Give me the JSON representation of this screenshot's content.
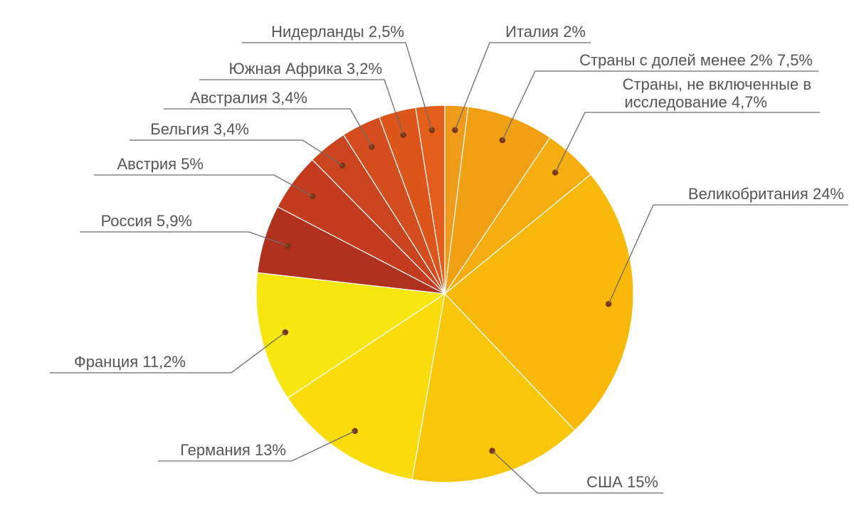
{
  "chart_data": {
    "type": "pie",
    "title": "",
    "slices": [
      {
        "label": "Италия 2%",
        "value": 2,
        "color": "#ee9a1a"
      },
      {
        "label": "Страны с долей менее 2% 7,5%",
        "value": 7.5,
        "color": "#f19f13"
      },
      {
        "label": "Страны, не включенные в исследование 4,7%",
        "value": 4.7,
        "color": "#f5ad0f"
      },
      {
        "label": "Великобритания 24%",
        "value": 24,
        "color": "#f8b90b"
      },
      {
        "label": "США 15%",
        "value": 15,
        "color": "#f9c70a"
      },
      {
        "label": "Германия 13%",
        "value": 13,
        "color": "#fadb0b"
      },
      {
        "label": "Франция 11,2%",
        "value": 11.2,
        "color": "#f8e610"
      },
      {
        "label": "Россия 5,9%",
        "value": 5.9,
        "color": "#b0311d"
      },
      {
        "label": "Австрия 5%",
        "value": 5,
        "color": "#c33c1f"
      },
      {
        "label": "Бельгия 3,4%",
        "value": 3.4,
        "color": "#cb4420"
      },
      {
        "label": "Австралия 3,4%",
        "value": 3.4,
        "color": "#d44d1f"
      },
      {
        "label": "Южная Африка 3,2%",
        "value": 3.2,
        "color": "#dc561c"
      },
      {
        "label": "Нидерланды 2,5%",
        "value": 2.5,
        "color": "#e35e1a"
      }
    ]
  }
}
